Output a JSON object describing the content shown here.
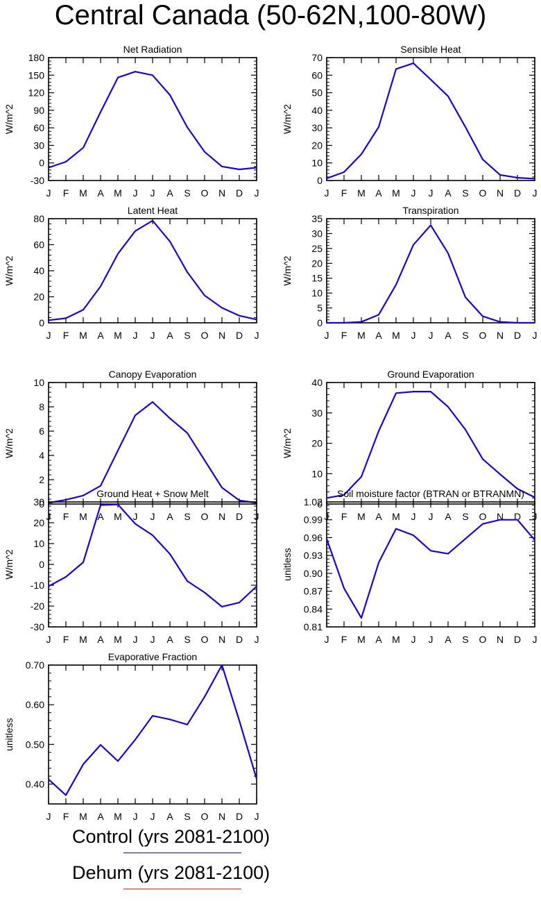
{
  "title": "Central Canada (50-62N,100-80W)",
  "colors": {
    "control": "#2200cc",
    "dehum": "#ff1a1a",
    "axis": "#000000"
  },
  "legend": [
    {
      "label": "Control (yrs 2081-2100)",
      "color": "#2200cc"
    },
    {
      "label": "Dehum (yrs 2081-2100)",
      "color": "#ff1a1a"
    }
  ],
  "chart_data": [
    {
      "type": "line",
      "title": "Net Radiation",
      "ylabel": "W/m^2",
      "categories": [
        "J",
        "F",
        "M",
        "A",
        "M",
        "J",
        "J",
        "A",
        "S",
        "O",
        "N",
        "D",
        "J"
      ],
      "ylim": [
        -30,
        180
      ],
      "yticks": [
        -30,
        0,
        30,
        60,
        90,
        120,
        150,
        180
      ],
      "ytick_labels": [
        "-30",
        "0",
        "30",
        "60",
        "90",
        "120",
        "150",
        "180"
      ],
      "series": [
        {
          "values": [
            -8,
            2,
            26,
            87,
            146,
            156,
            150,
            116,
            61,
            19,
            -6,
            -11,
            -8
          ]
        }
      ]
    },
    {
      "type": "line",
      "title": "Sensible Heat",
      "ylabel": "W/m^2",
      "categories": [
        "J",
        "F",
        "M",
        "A",
        "M",
        "J",
        "J",
        "A",
        "S",
        "O",
        "N",
        "D",
        "J"
      ],
      "ylim": [
        0,
        70
      ],
      "yticks": [
        0,
        10,
        20,
        30,
        40,
        50,
        60,
        70
      ],
      "ytick_labels": [
        "0",
        "10",
        "20",
        "30",
        "40",
        "50",
        "60",
        "70"
      ],
      "series": [
        {
          "values": [
            1.2,
            4.8,
            15,
            30.5,
            63.5,
            66.8,
            57.5,
            48,
            30.5,
            12,
            3.2,
            1.6,
            1
          ]
        }
      ]
    },
    {
      "type": "line",
      "title": "Latent Heat",
      "ylabel": "W/m^2",
      "categories": [
        "J",
        "F",
        "M",
        "A",
        "M",
        "J",
        "J",
        "A",
        "S",
        "O",
        "N",
        "D",
        "J"
      ],
      "ylim": [
        0,
        80
      ],
      "yticks": [
        0,
        20,
        40,
        60,
        80
      ],
      "ytick_labels": [
        "0",
        "20",
        "40",
        "60",
        "80"
      ],
      "series": [
        {
          "values": [
            2,
            3.5,
            10,
            28,
            53,
            70.5,
            78.5,
            62.5,
            39,
            21,
            11.5,
            5.5,
            2.5
          ]
        }
      ]
    },
    {
      "type": "line",
      "title": "Transpiration",
      "ylabel": "W/m^2",
      "categories": [
        "J",
        "F",
        "M",
        "A",
        "M",
        "J",
        "J",
        "A",
        "S",
        "O",
        "N",
        "D",
        "J"
      ],
      "ylim": [
        0,
        35
      ],
      "yticks": [
        0,
        5,
        10,
        15,
        20,
        25,
        30,
        35
      ],
      "ytick_labels": [
        "0",
        "5",
        "10",
        "15",
        "20",
        "25",
        "30",
        "35"
      ],
      "series": [
        {
          "values": [
            0,
            0,
            0.3,
            2.7,
            12.8,
            26.2,
            32.8,
            23.4,
            8.6,
            2.2,
            0.3,
            0,
            0
          ]
        }
      ]
    },
    {
      "type": "line",
      "title": "Canopy Evaporation",
      "ylabel": "W/m^2",
      "categories": [
        "J",
        "F",
        "M",
        "A",
        "M",
        "J",
        "J",
        "A",
        "S",
        "O",
        "N",
        "D",
        "J"
      ],
      "ylim": [
        0,
        10
      ],
      "yticks": [
        0,
        2,
        4,
        6,
        8,
        10
      ],
      "ytick_labels": [
        "0",
        "2",
        "4",
        "6",
        "8",
        "10"
      ],
      "series": [
        {
          "values": [
            0.1,
            0.35,
            0.7,
            1.5,
            4.4,
            7.3,
            8.4,
            7.05,
            5.85,
            3.6,
            1.35,
            0.3,
            0.1
          ]
        }
      ]
    },
    {
      "type": "line",
      "title": "Ground Evaporation",
      "ylabel": "W/m^2",
      "categories": [
        "J",
        "F",
        "M",
        "A",
        "M",
        "J",
        "J",
        "A",
        "S",
        "O",
        "N",
        "D",
        "J"
      ],
      "ylim": [
        0,
        40
      ],
      "yticks": [
        0,
        10,
        20,
        30,
        40
      ],
      "ytick_labels": [
        "0",
        "10",
        "20",
        "30",
        "40"
      ],
      "series": [
        {
          "values": [
            2,
            3,
            9,
            24,
            36.5,
            37,
            37,
            32,
            24.5,
            14.8,
            9.8,
            5,
            2.2
          ]
        }
      ]
    },
    {
      "type": "line",
      "title": "Ground Heat + Snow Melt",
      "ylabel": "W/m^2",
      "categories": [
        "J",
        "F",
        "M",
        "A",
        "M",
        "J",
        "J",
        "A",
        "S",
        "O",
        "N",
        "D",
        "J"
      ],
      "ylim": [
        -30,
        30
      ],
      "yticks": [
        -30,
        -20,
        -10,
        0,
        10,
        20,
        30
      ],
      "ytick_labels": [
        "-30",
        "-20",
        "-10",
        "0",
        "10",
        "20",
        "30"
      ],
      "series": [
        {
          "values": [
            -10.5,
            -6,
            1,
            28.5,
            28.8,
            19.5,
            14,
            5,
            -8,
            -13.5,
            -20.3,
            -18.3,
            -10.5
          ]
        }
      ]
    },
    {
      "type": "line",
      "title": "Soil moisture factor (BTRAN or BTRANMN)",
      "ylabel": "unitless",
      "categories": [
        "J",
        "F",
        "M",
        "A",
        "M",
        "J",
        "J",
        "A",
        "S",
        "O",
        "N",
        "D",
        "J"
      ],
      "ylim": [
        0.81,
        1.02
      ],
      "yticks": [
        0.81,
        0.84,
        0.87,
        0.9,
        0.93,
        0.96,
        0.99,
        1.02
      ],
      "ytick_labels": [
        "0.81",
        "0.84",
        "0.87",
        "0.90",
        "0.93",
        "0.96",
        "0.99",
        "1.02"
      ],
      "series": [
        {
          "values": [
            0.958,
            0.875,
            0.825,
            0.918,
            0.975,
            0.964,
            0.938,
            0.933,
            0.958,
            0.983,
            0.99,
            0.99,
            0.956
          ]
        }
      ]
    },
    {
      "type": "line",
      "title": "Evaporative Fraction",
      "ylabel": "unitless",
      "categories": [
        "J",
        "F",
        "M",
        "A",
        "M",
        "J",
        "J",
        "A",
        "S",
        "O",
        "N",
        "D",
        "J"
      ],
      "ylim": [
        0.35,
        0.7
      ],
      "yticks": [
        0.4,
        0.5,
        0.6,
        0.7
      ],
      "ytick_labels": [
        "0.40",
        "0.50",
        "0.60",
        "0.70"
      ],
      "series": [
        {
          "values": [
            0.412,
            0.372,
            0.45,
            0.499,
            0.458,
            0.512,
            0.572,
            0.563,
            0.55,
            0.62,
            0.7,
            0.56,
            0.413
          ]
        }
      ]
    }
  ]
}
